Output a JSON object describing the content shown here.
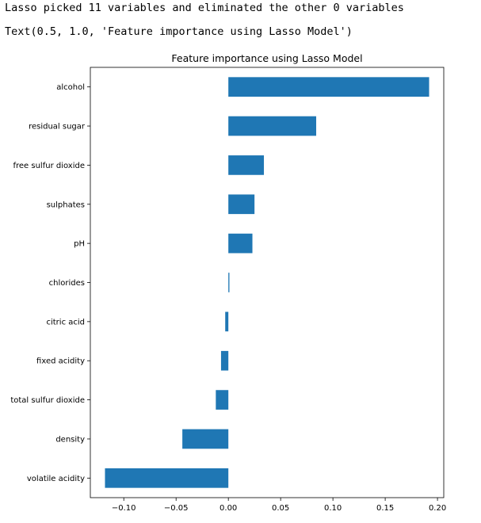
{
  "output": {
    "line1": "Lasso picked 11 variables and eliminated the other 0 variables",
    "line2": "Text(0.5, 1.0, 'Feature importance using Lasso Model')"
  },
  "chart_data": {
    "type": "bar",
    "orientation": "horizontal",
    "title": "Feature importance using Lasso Model",
    "categories": [
      "alcohol",
      "residual sugar",
      "free sulfur dioxide",
      "sulphates",
      "pH",
      "chlorides",
      "citric acid",
      "fixed acidity",
      "total sulfur dioxide",
      "density",
      "volatile acidity"
    ],
    "values": [
      0.192,
      0.084,
      0.034,
      0.025,
      0.023,
      0.001,
      -0.003,
      -0.007,
      -0.012,
      -0.044,
      -0.118
    ],
    "xlim": [
      -0.132,
      0.206
    ],
    "xticks": [
      -0.1,
      -0.05,
      0.0,
      0.05,
      0.1,
      0.15,
      0.2
    ],
    "xtick_labels": [
      "−0.10",
      "−0.05",
      "0.00",
      "0.05",
      "0.10",
      "0.15",
      "0.20"
    ],
    "xlabel": "",
    "ylabel": "",
    "grid": false,
    "bar_color": "#1f77b4"
  }
}
